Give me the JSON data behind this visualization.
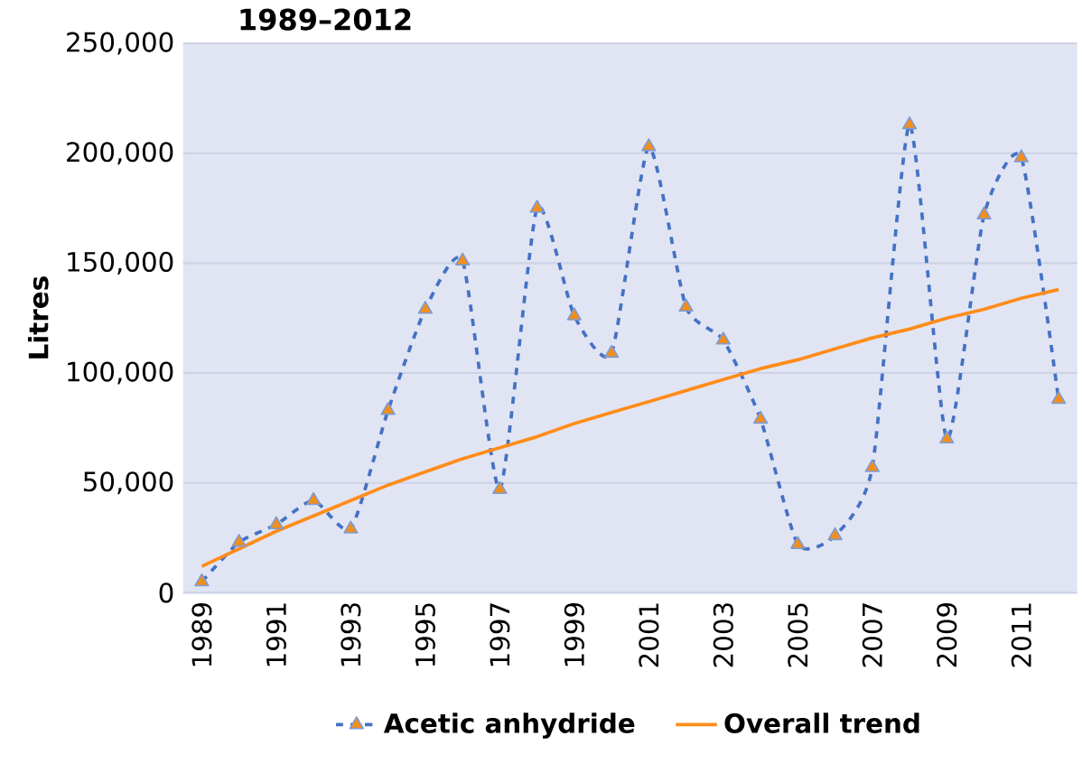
{
  "chart_data": {
    "type": "line",
    "title": "1989–2012",
    "ylabel": "Litres",
    "categories": [
      "1989",
      null,
      "1991",
      null,
      "1993",
      null,
      "1995",
      null,
      "1997",
      null,
      "1999",
      null,
      "2001",
      null,
      "2003",
      null,
      "2005",
      null,
      "2007",
      null,
      "2009",
      null,
      "2011",
      null
    ],
    "series": [
      {
        "name": "Acetic anhydride",
        "color": "#4472c4",
        "line_style": "dashed",
        "marker": "triangle",
        "values": [
          5000,
          23000,
          31000,
          42000,
          29000,
          83000,
          129000,
          151000,
          47000,
          175000,
          126000,
          109000,
          203000,
          130000,
          115000,
          79000,
          22000,
          26000,
          57000,
          213000,
          70000,
          172000,
          198000,
          88000
        ]
      },
      {
        "name": "Overall trend",
        "color": "#ff8c1a",
        "line_style": "solid",
        "marker": "none",
        "values": [
          12000,
          20000,
          28000,
          35000,
          42000,
          49000,
          55000,
          61000,
          66000,
          71000,
          77000,
          82000,
          87000,
          92000,
          97000,
          102000,
          106000,
          111000,
          116000,
          120000,
          125000,
          129000,
          134000,
          138000
        ]
      }
    ],
    "ylim": [
      0,
      250000
    ],
    "yticks": [
      {
        "value": 0,
        "label": "0"
      },
      {
        "value": 50000,
        "label": "50,000"
      },
      {
        "value": 100000,
        "label": "100,000"
      },
      {
        "value": 150000,
        "label": "150,000"
      },
      {
        "value": 200000,
        "label": "200,000"
      },
      {
        "value": 250000,
        "label": "250,000"
      }
    ],
    "grid": "y",
    "legend": "bottom"
  }
}
